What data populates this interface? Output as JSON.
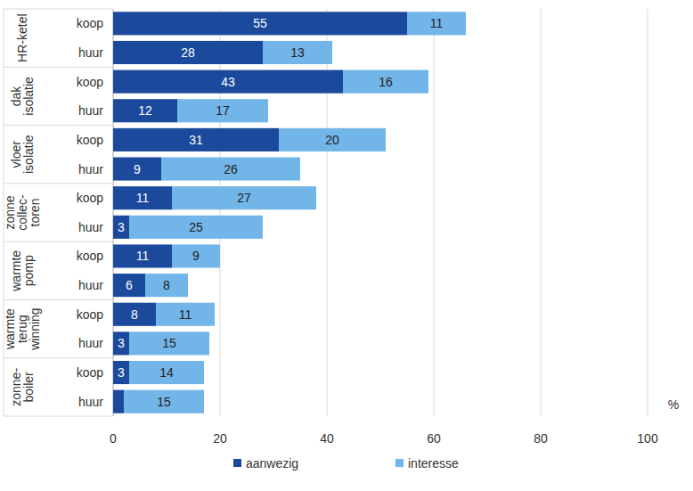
{
  "chart_data": {
    "type": "bar",
    "orientation": "horizontal",
    "stacked": true,
    "data_labels": true,
    "groups": [
      [
        "HR-ketel"
      ],
      [
        "dak",
        "isolatie"
      ],
      [
        "vloer",
        "isolatie"
      ],
      [
        "zonne",
        "collec-",
        "toren"
      ],
      [
        "warmte",
        "pomp"
      ],
      [
        "warmte",
        "terug",
        "winning"
      ],
      [
        "zonne-",
        "boiler"
      ]
    ],
    "categories": [
      "koop",
      "huur",
      "koop",
      "huur",
      "koop",
      "huur",
      "koop",
      "huur",
      "koop",
      "huur",
      "koop",
      "huur",
      "koop",
      "huur"
    ],
    "series": [
      {
        "name": "aanwezig",
        "color": "#1b4a9c",
        "values": [
          55,
          28,
          43,
          12,
          31,
          9,
          11,
          3,
          11,
          6,
          8,
          3,
          3,
          2
        ]
      },
      {
        "name": "interesse",
        "color": "#72b5e8",
        "values": [
          11,
          13,
          16,
          17,
          20,
          26,
          27,
          25,
          9,
          8,
          11,
          15,
          14,
          15
        ]
      }
    ],
    "xlim": [
      0,
      100
    ],
    "xticks": [
      0,
      20,
      40,
      60,
      80,
      100
    ],
    "xlabel": "%",
    "grid": true,
    "legend": "bottom"
  }
}
